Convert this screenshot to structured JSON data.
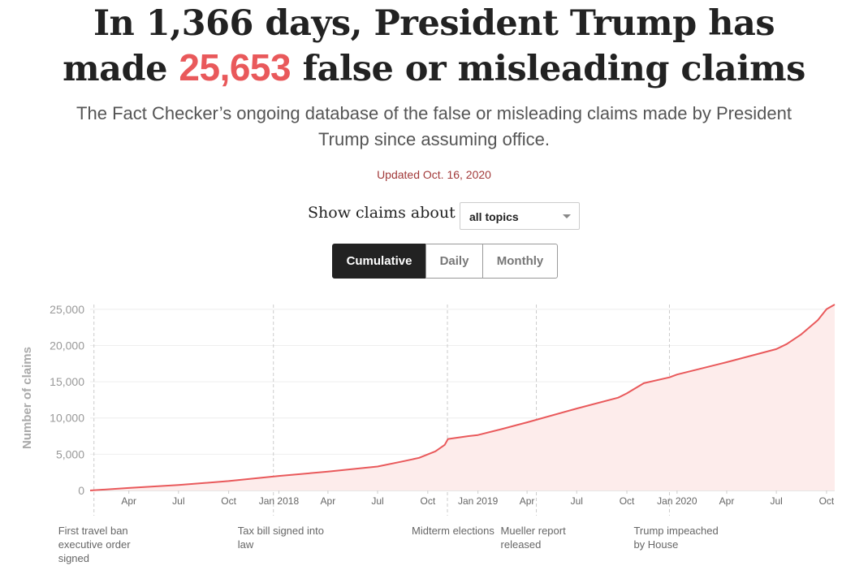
{
  "headline": {
    "line1": "In 1,366 days, President Trump has",
    "pre": "made ",
    "count": "25,653",
    "post": " false or misleading claims"
  },
  "subhead": "The Fact Checker’s ongoing database of the false or misleading claims made by President Trump since assuming office.",
  "updated": "Updated Oct. 16, 2020",
  "filter": {
    "label": "Show claims about",
    "selected": "all topics"
  },
  "views": [
    "Cumulative",
    "Daily",
    "Monthly"
  ],
  "active_view": "Cumulative",
  "colors": {
    "accent": "#e9595b",
    "area": "#fdeceb",
    "active": "#222222"
  },
  "chart_data": {
    "type": "area",
    "ylabel": "Number of claims",
    "yticks": [
      0,
      5000,
      10000,
      15000,
      20000,
      25000
    ],
    "ytick_labels": [
      "0",
      "5,000",
      "10,000",
      "15,000",
      "20,000",
      "25,000"
    ],
    "ylim": [
      0,
      25653
    ],
    "xlim": [
      "2017-01-20",
      "2020-10-16"
    ],
    "xticks": [
      {
        "date": "2017-04-01",
        "label": "Apr"
      },
      {
        "date": "2017-07-01",
        "label": "Jul"
      },
      {
        "date": "2017-10-01",
        "label": "Oct"
      },
      {
        "date": "2018-01-01",
        "label": "Jan 2018"
      },
      {
        "date": "2018-04-01",
        "label": "Apr"
      },
      {
        "date": "2018-07-01",
        "label": "Jul"
      },
      {
        "date": "2018-10-01",
        "label": "Oct"
      },
      {
        "date": "2019-01-01",
        "label": "Jan 2019"
      },
      {
        "date": "2019-04-01",
        "label": "Apr"
      },
      {
        "date": "2019-07-01",
        "label": "Jul"
      },
      {
        "date": "2019-10-01",
        "label": "Oct"
      },
      {
        "date": "2020-01-01",
        "label": "Jan 2020"
      },
      {
        "date": "2020-04-01",
        "label": "Apr"
      },
      {
        "date": "2020-07-01",
        "label": "Jul"
      },
      {
        "date": "2020-10-01",
        "label": "Oct"
      }
    ],
    "series": [
      {
        "points": [
          [
            "2017-01-20",
            0
          ],
          [
            "2017-04-01",
            350
          ],
          [
            "2017-07-01",
            750
          ],
          [
            "2017-10-01",
            1300
          ],
          [
            "2018-01-01",
            2000
          ],
          [
            "2018-04-01",
            2600
          ],
          [
            "2018-07-01",
            3300
          ],
          [
            "2018-08-15",
            4000
          ],
          [
            "2018-09-15",
            4500
          ],
          [
            "2018-10-15",
            5400
          ],
          [
            "2018-11-01",
            6300
          ],
          [
            "2018-11-07",
            7100
          ],
          [
            "2018-12-15",
            7500
          ],
          [
            "2019-01-01",
            7650
          ],
          [
            "2019-02-15",
            8500
          ],
          [
            "2019-04-01",
            9400
          ],
          [
            "2019-07-01",
            11300
          ],
          [
            "2019-09-15",
            12800
          ],
          [
            "2019-10-01",
            13400
          ],
          [
            "2019-11-01",
            14800
          ],
          [
            "2019-12-18",
            15600
          ],
          [
            "2020-01-01",
            16000
          ],
          [
            "2020-04-01",
            17700
          ],
          [
            "2020-07-01",
            19500
          ],
          [
            "2020-07-20",
            20200
          ],
          [
            "2020-08-15",
            21500
          ],
          [
            "2020-09-15",
            23500
          ],
          [
            "2020-10-01",
            25000
          ],
          [
            "2020-10-16",
            25653
          ]
        ]
      }
    ],
    "events": [
      {
        "date": "2017-01-27",
        "label": "First travel ban executive order signed"
      },
      {
        "date": "2017-12-22",
        "label": "Tax bill signed into law"
      },
      {
        "date": "2018-11-06",
        "label": "Midterm elections"
      },
      {
        "date": "2019-04-18",
        "label": "Mueller report released"
      },
      {
        "date": "2019-12-18",
        "label": "Trump impeached by House"
      }
    ]
  }
}
